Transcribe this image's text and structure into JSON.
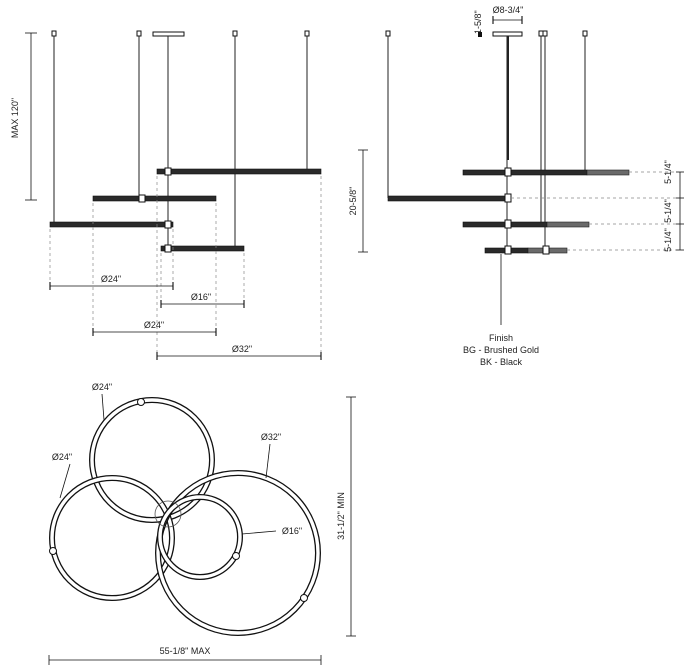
{
  "front_view": {
    "max_height": "MAX 120\"",
    "dims": {
      "ring_a": "Ø24\"",
      "ring_d": "Ø16\"",
      "ring_b": "Ø24\"",
      "ring_c": "Ø32\""
    }
  },
  "side_view": {
    "canopy_width": "Ø8-3/4\"",
    "canopy_height": "1-5/8\"",
    "overall_height": "20-5/8\"",
    "spacing": [
      "5-1/4\"",
      "5-1/4\"",
      "5-1/4\""
    ],
    "finish": {
      "title": "Finish",
      "options": [
        "BG - Brushed Gold",
        "BK - Black"
      ]
    }
  },
  "top_view": {
    "labels": {
      "ring_top": "Ø24\"",
      "ring_left": "Ø24\"",
      "ring_big": "Ø32\"",
      "ring_small": "Ø16\""
    },
    "min_depth": "31-1/2\" MIN",
    "max_width": "55-1/8\" MAX"
  }
}
